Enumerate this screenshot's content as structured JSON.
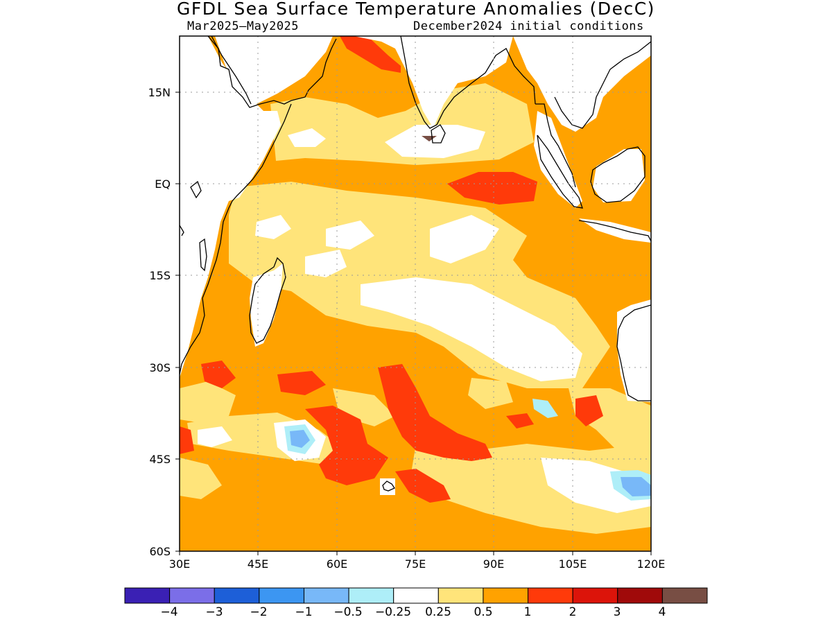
{
  "title": "GFDL Sea Surface Temperature Anomalies (DecC)",
  "subtitle_left": "Mar2025–May2025",
  "subtitle_right": "December2024 initial conditions",
  "map": {
    "lat_labels": [
      "15N",
      "EQ",
      "15S",
      "30S",
      "45S",
      "60S"
    ],
    "lon_labels": [
      "30E",
      "45E",
      "60E",
      "75E",
      "90E",
      "105E",
      "120E"
    ],
    "lon_range": [
      30,
      120
    ],
    "lat_range": [
      -60,
      24
    ],
    "grid": true
  },
  "colorbar": {
    "labels": [
      "−4",
      "−3",
      "−2",
      "−1",
      "−0.5",
      "−0.25",
      "0.25",
      "0.5",
      "1",
      "2",
      "3",
      "4"
    ],
    "colors": [
      "#3a20b4",
      "#7b6ee8",
      "#1d5fd8",
      "#3c96f2",
      "#78b8f8",
      "#aeeef8",
      "#ffffff",
      "#ffe47a",
      "#ffa200",
      "#ff3a0a",
      "#dc140a",
      "#a00a0a",
      "#784e44"
    ]
  },
  "colors": {
    "land": "#ffffff",
    "coast": "#000000",
    "grid": "#9a9a9a"
  }
}
